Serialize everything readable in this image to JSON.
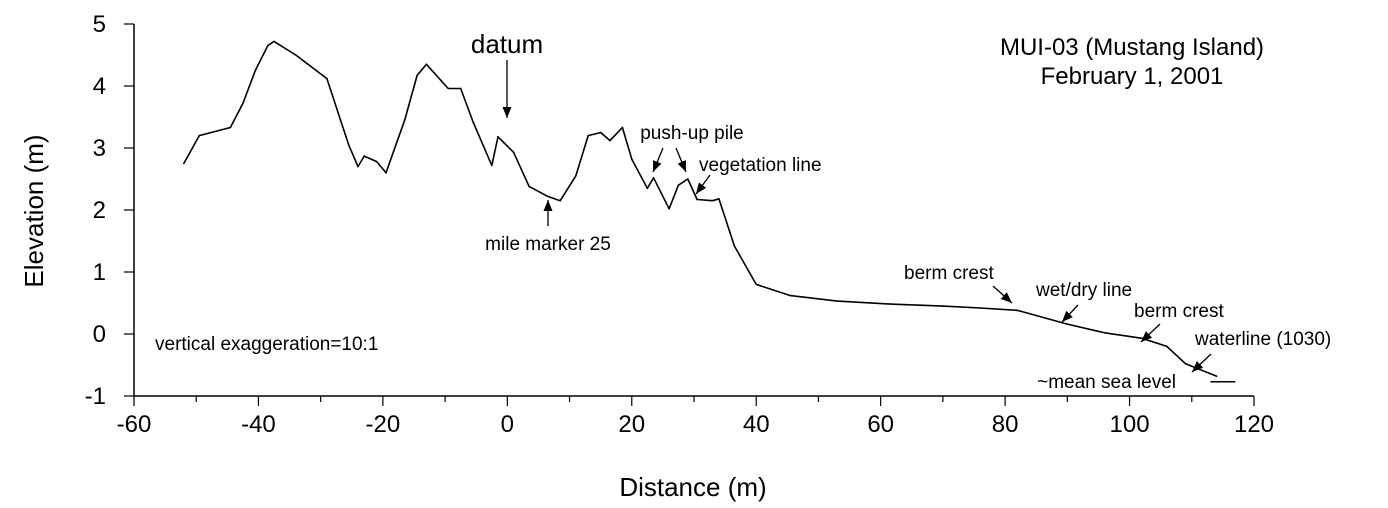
{
  "chart_data": {
    "type": "line",
    "title": "MUI-03 (Mustang Island)",
    "subtitle": "February 1, 2001",
    "xlabel": "Distance (m)",
    "ylabel": "Elevation (m)",
    "xlim": [
      -60,
      120
    ],
    "ylim": [
      -1,
      5
    ],
    "x_ticks": [
      -60,
      -40,
      -20,
      0,
      20,
      40,
      60,
      80,
      100,
      120
    ],
    "y_ticks": [
      -1,
      0,
      1,
      2,
      3,
      4,
      5
    ],
    "x_tick_labels": [
      "-60",
      "-40",
      "-20",
      "0",
      "20",
      "40",
      "60",
      "80",
      "100",
      "120"
    ],
    "y_tick_labels": [
      "-1",
      "0",
      "1",
      "2",
      "3",
      "4",
      "5"
    ],
    "x_minor_step": 10,
    "grid": false,
    "series": [
      {
        "points": [
          [
            -52,
            2.75
          ],
          [
            -49.5,
            3.2
          ],
          [
            -44.5,
            3.33
          ],
          [
            -42.5,
            3.72
          ],
          [
            -40.5,
            4.25
          ],
          [
            -38.5,
            4.65
          ],
          [
            -37.5,
            4.72
          ],
          [
            -34,
            4.5
          ],
          [
            -29,
            4.12
          ],
          [
            -25.5,
            3.05
          ],
          [
            -24,
            2.7
          ],
          [
            -23,
            2.87
          ],
          [
            -21,
            2.78
          ],
          [
            -19.5,
            2.6
          ],
          [
            -16.5,
            3.45
          ],
          [
            -14.5,
            4.17
          ],
          [
            -13,
            4.35
          ],
          [
            -9.5,
            3.96
          ],
          [
            -7.5,
            3.96
          ],
          [
            -5.5,
            3.42
          ],
          [
            -2.5,
            2.72
          ],
          [
            -1.5,
            3.18
          ],
          [
            -0.5,
            3.08
          ],
          [
            1,
            2.93
          ],
          [
            3.5,
            2.38
          ],
          [
            6.5,
            2.22
          ],
          [
            8.5,
            2.15
          ],
          [
            11,
            2.55
          ],
          [
            13,
            3.2
          ],
          [
            15,
            3.25
          ],
          [
            16.5,
            3.12
          ],
          [
            18.5,
            3.33
          ],
          [
            20,
            2.82
          ],
          [
            22.5,
            2.35
          ],
          [
            23.5,
            2.52
          ],
          [
            26,
            2.02
          ],
          [
            27.5,
            2.4
          ],
          [
            29,
            2.5
          ],
          [
            30.5,
            2.17
          ],
          [
            33,
            2.15
          ],
          [
            34,
            2.18
          ],
          [
            36.5,
            1.42
          ],
          [
            40,
            0.8
          ],
          [
            45.5,
            0.62
          ],
          [
            53,
            0.53
          ],
          [
            62,
            0.48
          ],
          [
            70,
            0.45
          ],
          [
            76,
            0.42
          ],
          [
            82,
            0.38
          ],
          [
            90,
            0.16
          ],
          [
            96,
            0.02
          ],
          [
            102,
            -0.07
          ],
          [
            106,
            -0.2
          ],
          [
            109,
            -0.48
          ],
          [
            114,
            -0.68
          ]
        ]
      }
    ],
    "msl_line": {
      "x1": 113,
      "x2": 117,
      "y": -0.77
    },
    "annotations": [
      {
        "text": "datum"
      },
      {
        "text": "mile marker 25"
      },
      {
        "text": "push-up pile"
      },
      {
        "text": "vegetation line"
      },
      {
        "text": "berm crest"
      },
      {
        "text": "wet/dry line"
      },
      {
        "text": "berm crest"
      },
      {
        "text": "waterline (1030)"
      },
      {
        "text": "~mean sea level"
      },
      {
        "text": "vertical exaggeration=10:1"
      }
    ]
  }
}
